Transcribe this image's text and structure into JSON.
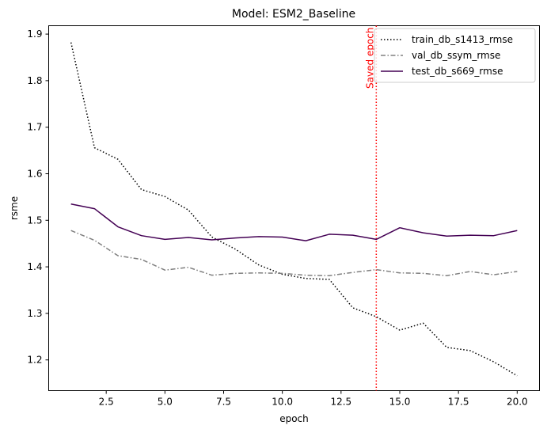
{
  "chart_data": {
    "type": "line",
    "title": "Model: ESM2_Baseline",
    "xlabel": "epoch",
    "ylabel": "rsme",
    "xlim": [
      0.05,
      20.95
    ],
    "ylim": [
      1.134,
      1.918
    ],
    "xticks": [
      2.5,
      5.0,
      7.5,
      10.0,
      12.5,
      15.0,
      17.5,
      20.0
    ],
    "xtick_labels": [
      "2.5",
      "5.0",
      "7.5",
      "10.0",
      "12.5",
      "15.0",
      "17.5",
      "20.0"
    ],
    "yticks": [
      1.2,
      1.3,
      1.4,
      1.5,
      1.6,
      1.7,
      1.8,
      1.9
    ],
    "ytick_labels": [
      "1.2",
      "1.3",
      "1.4",
      "1.5",
      "1.6",
      "1.7",
      "1.8",
      "1.9"
    ],
    "grid": false,
    "legend_position": "top-right",
    "x": [
      1,
      2,
      3,
      4,
      5,
      6,
      7,
      8,
      9,
      10,
      11,
      12,
      13,
      14,
      15,
      16,
      17,
      18,
      19,
      20
    ],
    "series": [
      {
        "name": "train_db_s1413_rmse",
        "color": "#000000",
        "style": "dotted",
        "values": [
          1.882,
          1.656,
          1.631,
          1.566,
          1.551,
          1.522,
          1.464,
          1.438,
          1.404,
          1.384,
          1.375,
          1.373,
          1.312,
          1.293,
          1.264,
          1.279,
          1.227,
          1.22,
          1.196,
          1.166
        ]
      },
      {
        "name": "val_db_ssym_rmse",
        "color": "#808080",
        "style": "dashdot",
        "values": [
          1.478,
          1.457,
          1.424,
          1.416,
          1.393,
          1.399,
          1.382,
          1.386,
          1.387,
          1.386,
          1.382,
          1.381,
          1.388,
          1.394,
          1.387,
          1.386,
          1.381,
          1.39,
          1.383,
          1.39
        ]
      },
      {
        "name": "test_db_s669_rmse",
        "color": "#440154",
        "style": "solid",
        "values": [
          1.535,
          1.525,
          1.486,
          1.467,
          1.459,
          1.463,
          1.458,
          1.462,
          1.465,
          1.464,
          1.456,
          1.47,
          1.468,
          1.459,
          1.484,
          1.473,
          1.466,
          1.468,
          1.467,
          1.478
        ]
      }
    ],
    "annotations": [
      {
        "type": "vline",
        "x": 14,
        "color": "#ff0000",
        "style": "dotted",
        "label": "Saved epoch"
      }
    ]
  }
}
